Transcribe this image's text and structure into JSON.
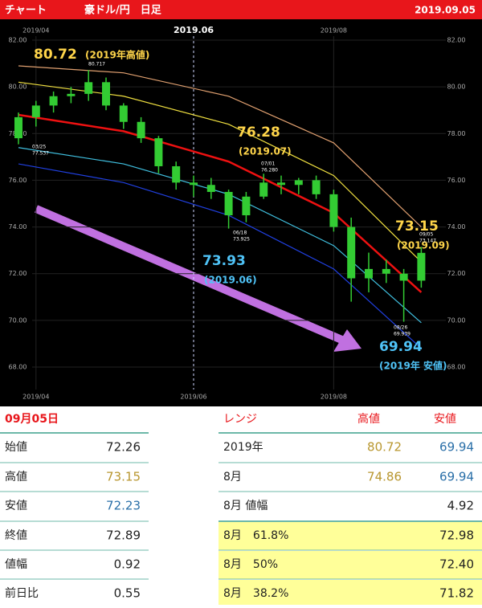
{
  "header": {
    "left": "チャート",
    "pair": "豪ドル/円　日足",
    "date": "2019.09.05"
  },
  "chart_data": {
    "type": "candlestick",
    "categories": [
      null,
      null,
      null,
      null,
      null,
      null,
      null,
      null,
      null,
      null,
      null,
      null,
      null,
      null,
      null,
      null,
      null,
      null,
      null,
      null,
      null,
      null,
      null,
      null
    ],
    "open": [
      77.8,
      78.7,
      79.2,
      79.6,
      79.7,
      80.2,
      79.2,
      78.5,
      77.8,
      76.6,
      75.9,
      75.8,
      75.5,
      74.5,
      75.3,
      75.9,
      75.8,
      76.0,
      75.4,
      74.0,
      71.8,
      72.2,
      72.0,
      71.7
    ],
    "high": [
      78.9,
      79.4,
      79.8,
      80.0,
      80.72,
      80.4,
      79.3,
      78.7,
      77.9,
      76.8,
      76.2,
      76.1,
      75.6,
      75.5,
      76.28,
      76.2,
      76.1,
      76.2,
      75.6,
      74.4,
      72.9,
      72.6,
      72.2,
      73.15
    ],
    "low": [
      77.54,
      78.3,
      78.9,
      79.3,
      79.4,
      79.0,
      78.2,
      77.6,
      76.3,
      75.6,
      75.3,
      75.2,
      73.93,
      74.2,
      75.2,
      75.4,
      75.4,
      75.2,
      73.8,
      70.8,
      71.2,
      71.6,
      69.94,
      71.4
    ],
    "close": [
      78.7,
      79.2,
      79.6,
      79.7,
      80.2,
      79.2,
      78.5,
      77.8,
      76.6,
      75.9,
      75.8,
      75.5,
      74.5,
      75.3,
      75.9,
      75.8,
      76.0,
      75.4,
      74.0,
      71.8,
      72.2,
      72.0,
      71.7,
      72.89
    ],
    "color": "#33cc33",
    "ylim": [
      68,
      82
    ],
    "yticks": [
      {
        "value": 68,
        "label": "68.00"
      },
      {
        "value": 70,
        "label": "70.00"
      },
      {
        "value": 72,
        "label": "72.00"
      },
      {
        "value": 74,
        "label": "74.00"
      },
      {
        "value": 76,
        "label": "76.00"
      },
      {
        "value": 78,
        "label": "78.00"
      },
      {
        "value": 80,
        "label": "80.00"
      },
      {
        "value": 82,
        "label": "82.00"
      }
    ],
    "xticks_top": [
      {
        "value": 1,
        "label": "2019/04"
      },
      {
        "value": 10,
        "label": "2019.06"
      },
      {
        "value": 18,
        "label": "2019/08"
      }
    ],
    "xticks_bottom": [
      {
        "value": 1,
        "label": "2019/04"
      },
      {
        "value": 10,
        "label": "2019/06"
      },
      {
        "value": 18,
        "label": "2019/08"
      }
    ],
    "bands_x": [
      0,
      6,
      12,
      18,
      23
    ],
    "bands": [
      {
        "color": "#e0a070",
        "values": [
          80.9,
          80.6,
          79.6,
          77.6,
          74.0
        ]
      },
      {
        "color": "#f0e040",
        "values": [
          80.2,
          79.6,
          78.4,
          76.2,
          72.5
        ]
      },
      {
        "color": "#ee1111",
        "values": [
          78.8,
          78.1,
          76.8,
          74.6,
          71.2
        ]
      },
      {
        "color": "#40c0e0",
        "values": [
          77.4,
          76.7,
          75.4,
          73.2,
          69.9
        ]
      },
      {
        "color": "#2040e0",
        "values": [
          76.7,
          75.9,
          74.5,
          72.2,
          68.8
        ]
      }
    ],
    "annotations": [
      {
        "value": "80.72",
        "note": "(2019年高値)",
        "color": "#ffd54a"
      },
      {
        "value": "76.28",
        "note": "(2019.07)",
        "color": "#ffd54a"
      },
      {
        "value": "73.15",
        "note": "(2019.09)",
        "color": "#ffd54a"
      },
      {
        "value": "73.93",
        "note": "(2019.06)",
        "color": "#4fc3f7"
      },
      {
        "value": "69.94",
        "note": "(2019年 安値)",
        "color": "#4fc3f7"
      }
    ],
    "point_labels": [
      [
        "03/25",
        "77.537"
      ],
      [
        "80.717"
      ],
      [
        "07/01",
        "76.280"
      ],
      [
        "06/18",
        "73.925"
      ],
      [
        "08/26",
        "69.939"
      ],
      [
        "09/05",
        "73.147"
      ]
    ]
  },
  "day_table": {
    "title": "09月05日",
    "rows": [
      [
        "始値",
        "72.26"
      ],
      [
        "高値",
        "73.15"
      ],
      [
        "安値",
        "72.23"
      ],
      [
        "終値",
        "72.89"
      ],
      [
        "値幅",
        "0.92"
      ],
      [
        "前日比",
        "0.55"
      ]
    ]
  },
  "range_table": {
    "header": [
      "レンジ",
      "高値",
      "安値"
    ],
    "rows": [
      [
        "2019年",
        "80.72",
        "69.94"
      ],
      [
        "8月",
        "74.86",
        "69.94"
      ],
      [
        "8月 値幅",
        null,
        "4.92"
      ],
      [
        "8月　61.8%",
        null,
        "72.98"
      ],
      [
        "8月　50%",
        null,
        "72.40"
      ],
      [
        "8月　38.2%",
        null,
        "71.82"
      ]
    ]
  }
}
